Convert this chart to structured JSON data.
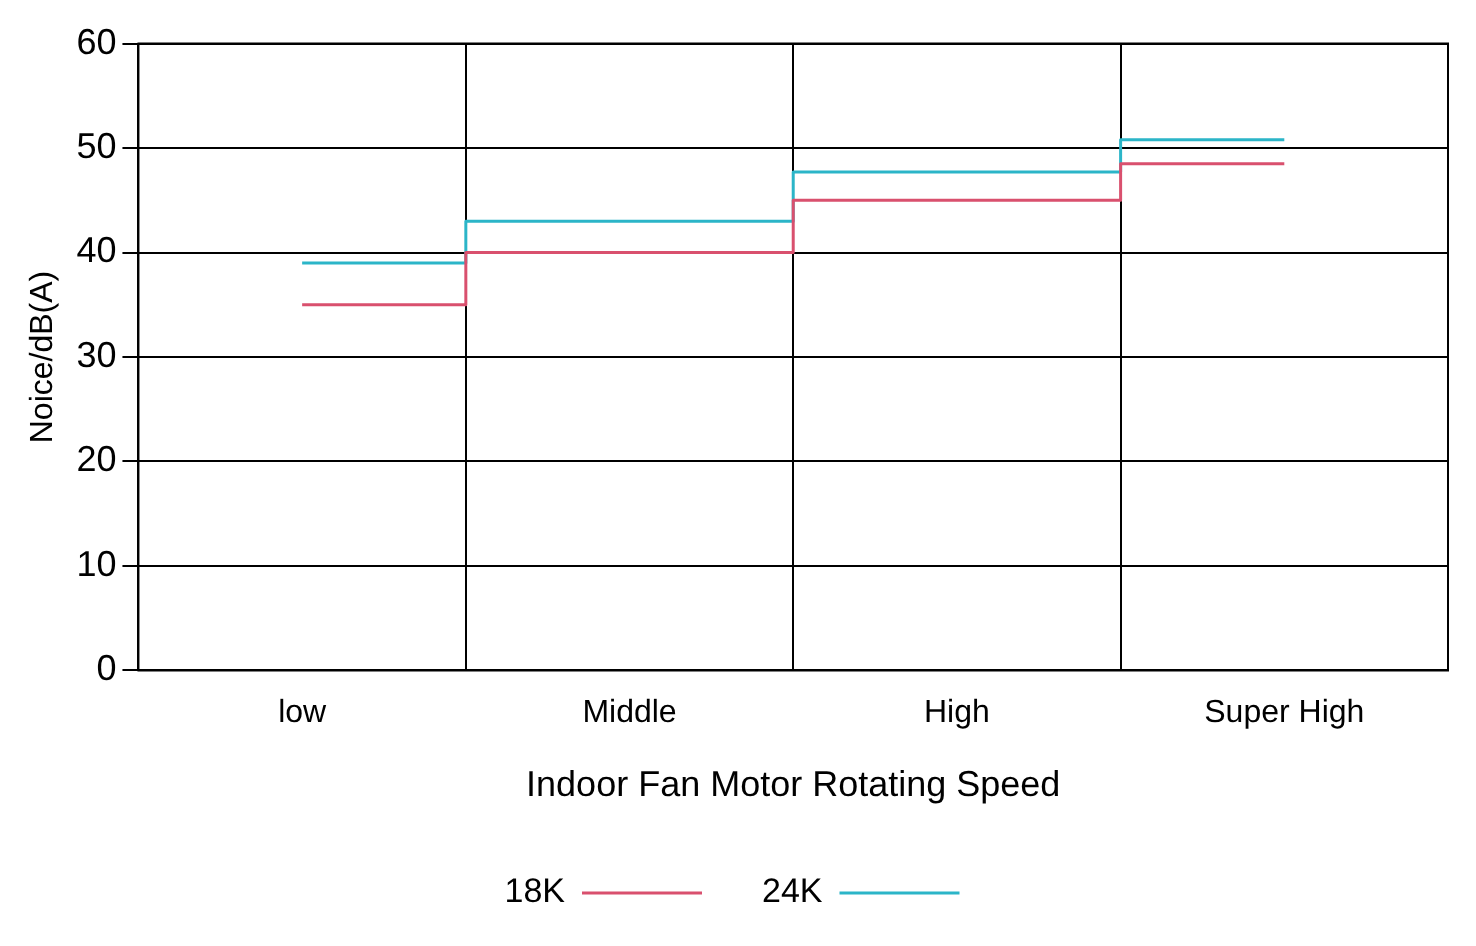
{
  "chart_data": {
    "type": "step",
    "xlabel": "Indoor Fan Motor Rotating Speed",
    "ylabel": "Noice/dB(A)",
    "categories": [
      "low",
      "Middle",
      "High",
      "Super High"
    ],
    "series": [
      {
        "name": "18K",
        "color": "#d9506e",
        "values": [
          35,
          40,
          45,
          48.5
        ]
      },
      {
        "name": "24K",
        "color": "#2bb5c8",
        "values": [
          39,
          43,
          47.7,
          50.8
        ]
      }
    ],
    "ylim": [
      0,
      60
    ],
    "yticks": [
      0,
      10,
      20,
      30,
      40,
      50,
      60
    ],
    "grid": true,
    "legend": "bottom",
    "marker": "none",
    "line_style": "solid"
  }
}
